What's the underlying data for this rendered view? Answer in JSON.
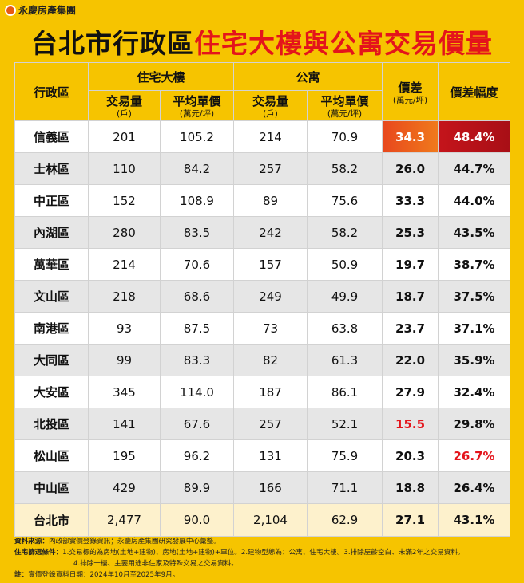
{
  "logo": "永慶房產集團",
  "title": {
    "part1": "台北市行政區",
    "part2": "住宅大樓與公寓交易價量"
  },
  "table": {
    "header": {
      "district": "行政區",
      "group1": "住宅大樓",
      "group2": "公寓",
      "diff": {
        "main": "價差",
        "unit": "(萬元/坪)"
      },
      "diff_pct": "價差幅度",
      "sub": [
        {
          "main": "交易量",
          "unit": "(戶)"
        },
        {
          "main": "平均單價",
          "unit": "(萬元/坪)"
        },
        {
          "main": "交易量",
          "unit": "(戶)"
        },
        {
          "main": "平均單價",
          "unit": "(萬元/坪)"
        }
      ]
    },
    "rows": [
      [
        "信義區",
        "201",
        "105.2",
        "214",
        "70.9",
        "34.3",
        "48.4%"
      ],
      [
        "士林區",
        "110",
        "84.2",
        "257",
        "58.2",
        "26.0",
        "44.7%"
      ],
      [
        "中正區",
        "152",
        "108.9",
        "89",
        "75.6",
        "33.3",
        "44.0%"
      ],
      [
        "內湖區",
        "280",
        "83.5",
        "242",
        "58.2",
        "25.3",
        "43.5%"
      ],
      [
        "萬華區",
        "214",
        "70.6",
        "157",
        "50.9",
        "19.7",
        "38.7%"
      ],
      [
        "文山區",
        "218",
        "68.6",
        "249",
        "49.9",
        "18.7",
        "37.5%"
      ],
      [
        "南港區",
        "93",
        "87.5",
        "73",
        "63.8",
        "23.7",
        "37.1%"
      ],
      [
        "大同區",
        "99",
        "83.3",
        "82",
        "61.3",
        "22.0",
        "35.9%"
      ],
      [
        "大安區",
        "345",
        "114.0",
        "187",
        "86.1",
        "27.9",
        "32.4%"
      ],
      [
        "北投區",
        "141",
        "67.6",
        "257",
        "52.1",
        "15.5",
        "29.8%"
      ],
      [
        "松山區",
        "195",
        "96.2",
        "131",
        "75.9",
        "20.3",
        "26.7%"
      ],
      [
        "中山區",
        "429",
        "89.9",
        "166",
        "71.1",
        "18.8",
        "26.4%"
      ]
    ],
    "total": [
      "台北市",
      "2,477",
      "90.0",
      "2,104",
      "62.9",
      "27.1",
      "43.1%"
    ]
  },
  "notes": [
    {
      "label": "資料來源：",
      "text": "內政部實價登錄資訊；永慶房產集團研究發展中心彙整。"
    },
    {
      "label": "住宅篩選條件：",
      "text": "1.交易標的為房地(土地+建物)、房地(土地+建物)+車位。2.建物型態為：公寓、住宅大樓。3.排除屋齡空白、未滿2年之交易資料。"
    },
    {
      "label": "",
      "text": "4.排除一樓、主要用途非住家及特殊交易之交易資料。"
    },
    {
      "label": "註：",
      "text": "實價登錄資料日期：2024年10月至2025年9月。"
    }
  ]
}
